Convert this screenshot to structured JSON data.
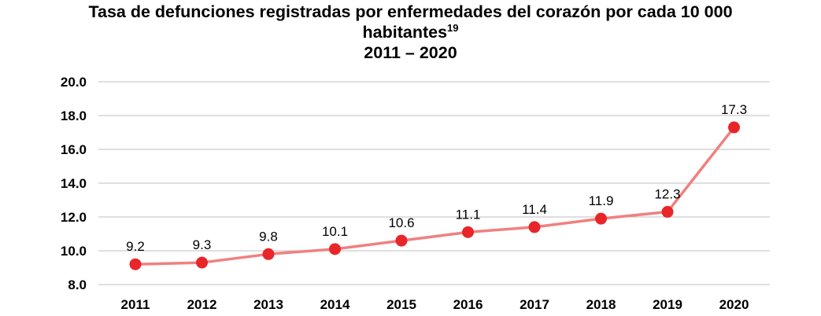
{
  "chart_data": {
    "type": "line",
    "title_line1": "Tasa de defunciones registradas por enfermedades del corazón por cada 10 000",
    "title_line2": "habitantes",
    "title_sup": "19",
    "subtitle": "2011 – 2020",
    "x": [
      "2011",
      "2012",
      "2013",
      "2014",
      "2015",
      "2016",
      "2017",
      "2018",
      "2019",
      "2020"
    ],
    "values": [
      9.2,
      9.3,
      9.8,
      10.1,
      10.6,
      11.1,
      11.4,
      11.9,
      12.3,
      17.3
    ],
    "data_labels": [
      "9.2",
      "9.3",
      "9.8",
      "10.1",
      "10.6",
      "11.1",
      "11.4",
      "11.9",
      "12.3",
      "17.3"
    ],
    "y_ticks": [
      "8.0",
      "10.0",
      "12.0",
      "14.0",
      "16.0",
      "18.0",
      "20.0"
    ],
    "ylim": [
      8,
      20
    ],
    "grid": true,
    "legend": "none",
    "line_color": "#f08080",
    "marker_color": "#e8262a",
    "grid_color": "#bfbfbf"
  }
}
